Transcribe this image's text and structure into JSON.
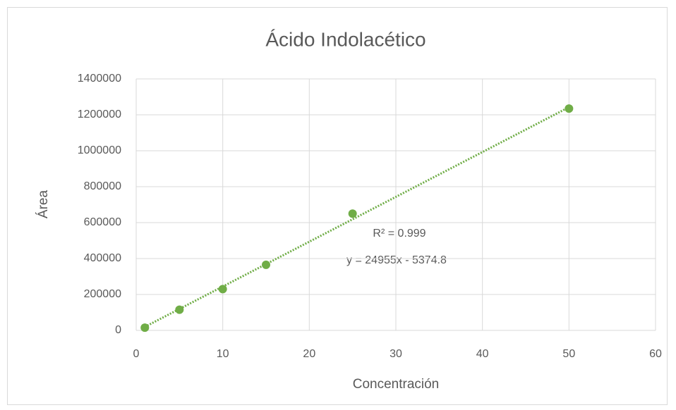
{
  "chart_data": {
    "type": "scatter",
    "title": "Ácido Indolacético",
    "x_label": "Concentración",
    "y_label": "Área",
    "series": [
      {
        "name": "Área",
        "color": "#70ad47",
        "x": [
          1,
          5,
          10,
          15,
          25,
          50
        ],
        "values": [
          15000,
          115000,
          230000,
          365000,
          650000,
          1235000
        ]
      }
    ],
    "trendline": {
      "slope": 24955,
      "intercept": -5374.8,
      "color": "#70ad47"
    },
    "annotations": [
      "R² = 0.999",
      "y = 24955x  - 5374.8"
    ],
    "xlim": [
      0,
      60
    ],
    "xticks": [
      0,
      10,
      20,
      30,
      40,
      50,
      60
    ],
    "ylim": [
      0,
      1400000
    ],
    "yticks": [
      0,
      200000,
      400000,
      600000,
      800000,
      1000000,
      1200000,
      1400000
    ],
    "grid": true
  }
}
